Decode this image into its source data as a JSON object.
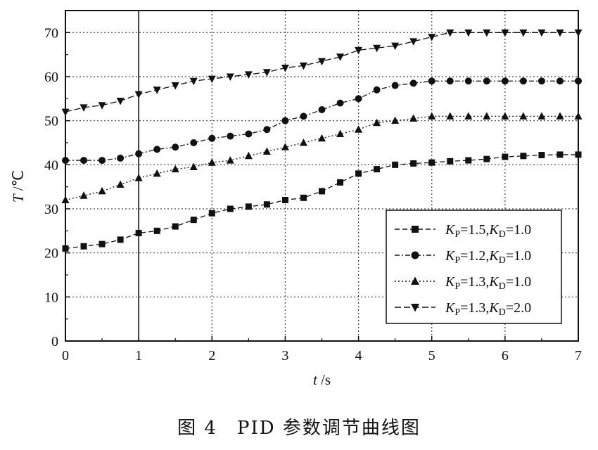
{
  "caption": "图 4　PID 参数调节曲线图",
  "chart_data": {
    "type": "line",
    "title": "",
    "xlabel_var": "t",
    "xlabel_unit": " /s",
    "ylabel_var": "T",
    "ylabel_unit": " /℃",
    "xlim": [
      0,
      7
    ],
    "ylim": [
      0,
      75
    ],
    "x_ticks": [
      "0",
      "1",
      "2",
      "3",
      "4",
      "5",
      "6",
      "7"
    ],
    "y_ticks": [
      "0",
      "10",
      "20",
      "30",
      "40",
      "50",
      "60",
      "70"
    ],
    "grid": true,
    "grid_style": "dotted",
    "highlight_x": 1,
    "legend_position": "bottom-right",
    "x": [
      0,
      0.25,
      0.5,
      0.75,
      1.0,
      1.25,
      1.5,
      1.75,
      2.0,
      2.25,
      2.5,
      2.75,
      3.0,
      3.25,
      3.5,
      3.75,
      4.0,
      4.25,
      4.5,
      4.75,
      5.0,
      5.25,
      5.5,
      5.75,
      6.0,
      6.25,
      6.5,
      6.75,
      7.0
    ],
    "series": [
      {
        "name": "KP=1.5,KD=1.0",
        "legend": {
          "K1": "K",
          "s1": "P",
          "v1": "=1.5,",
          "K2": "K",
          "s2": "D",
          "v2": "=1.0"
        },
        "marker": "square",
        "line": "dash",
        "values": [
          21,
          21.5,
          22,
          23,
          24.5,
          25,
          26,
          27.5,
          29,
          30,
          30.5,
          31,
          32,
          32.5,
          34,
          36,
          38,
          39,
          40,
          40.3,
          40.5,
          40.8,
          41,
          41.3,
          41.8,
          42,
          42.2,
          42.3,
          42.3
        ]
      },
      {
        "name": "KP=1.2,KD=1.0",
        "legend": {
          "K1": "K",
          "s1": "P",
          "v1": "=1.2,",
          "K2": "K",
          "s2": "D",
          "v2": "=1.0"
        },
        "marker": "circle",
        "line": "dashdot",
        "values": [
          41,
          41,
          41,
          41.5,
          42.5,
          43.5,
          44,
          45,
          46,
          46.5,
          47,
          48,
          50,
          51,
          52.5,
          54,
          55,
          57,
          58,
          58.5,
          59,
          59,
          59,
          59,
          59,
          59,
          59,
          59,
          59
        ]
      },
      {
        "name": "KP=1.3,KD=1.0",
        "legend": {
          "K1": "K",
          "s1": "P",
          "v1": "=1.3,",
          "K2": "K",
          "s2": "D",
          "v2": "=1.0"
        },
        "marker": "triangle",
        "line": "dot",
        "values": [
          32,
          33,
          34,
          35.5,
          37,
          38,
          39,
          39.5,
          40.5,
          41,
          42,
          43,
          44,
          45,
          46,
          47,
          48,
          49.5,
          50,
          50.5,
          51,
          51,
          51,
          51,
          51,
          51,
          51,
          51,
          51
        ]
      },
      {
        "name": "KP=1.3,KD=2.0",
        "legend": {
          "K1": "K",
          "s1": "P",
          "v1": "=1.3,",
          "K2": "K",
          "s2": "D",
          "v2": "=2.0"
        },
        "marker": "triangle-down",
        "line": "longdash",
        "values": [
          52,
          53,
          53.5,
          54.5,
          56,
          57,
          58,
          59,
          59.5,
          60,
          60.5,
          61,
          62,
          62.5,
          63.5,
          64.5,
          66,
          66.5,
          67,
          68,
          69,
          70,
          70,
          70,
          70,
          70,
          70,
          70,
          70
        ]
      }
    ]
  }
}
